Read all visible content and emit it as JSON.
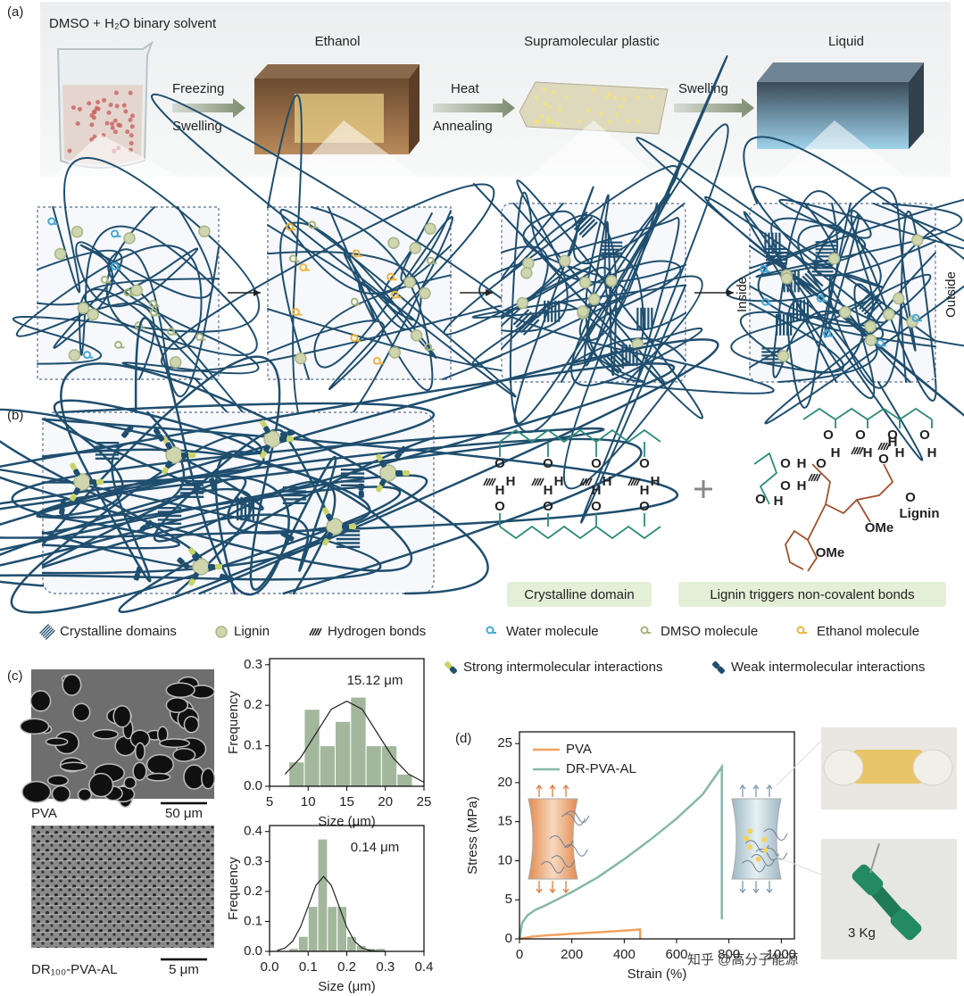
{
  "panel_labels": [
    "(a)",
    "(b)",
    "(c)",
    "(d)"
  ],
  "panel_a": {
    "solvent": "DMSO + H₂O binary solvent",
    "stages": [
      "Ethanol",
      "Supramolecular plastic",
      "Liquid"
    ],
    "steps": [
      [
        "Freezing",
        "Swelling"
      ],
      [
        "Heat",
        "Annealing"
      ],
      [
        "Swelling"
      ]
    ],
    "inside": "Inside",
    "outside": "Outside"
  },
  "panel_b": {
    "captions": [
      "Crystalline domain",
      "Lignin triggers non-covalent bonds"
    ],
    "atoms": {
      "oxygen": "O",
      "hydrogen": "H",
      "methoxy": "OMe",
      "lignin": "Lignin"
    }
  },
  "legend": [
    "Crystalline domains",
    "Lignin",
    "Hydrogen bonds",
    "Water molecule",
    "DMSO molecule",
    "Ethanol molecule",
    "Strong intermolecular interactions",
    "Weak intermolecular interactions"
  ],
  "panel_c": {
    "images": [
      {
        "label": "PVA",
        "scale": "50 μm"
      },
      {
        "label": "DR₁₀₀-PVA-AL",
        "scale": "5 μm"
      }
    ]
  },
  "panel_d": {
    "photo_label": "3 Kg"
  },
  "watermark": "知乎 @高分子能源",
  "chart_data": [
    {
      "type": "histogram",
      "annotation": "15.12 μm",
      "xlabel": "Size (μm)",
      "ylabel": "Frequency",
      "color": "#a3b79d",
      "bins": [
        7.5,
        9.5,
        11.5,
        13.5,
        15.5,
        17.5,
        19.5,
        21.5,
        23.5
      ],
      "values": [
        0.06,
        0.19,
        0.1,
        0.16,
        0.22,
        0.1,
        0.1,
        0.03
      ],
      "fit": {
        "x": [
          7,
          9,
          11,
          13,
          15,
          17,
          19,
          21,
          23,
          25
        ],
        "y": [
          0.03,
          0.07,
          0.13,
          0.19,
          0.21,
          0.19,
          0.13,
          0.07,
          0.03,
          0.01
        ]
      },
      "xlim": [
        5,
        25
      ],
      "xticks": [
        5,
        10,
        15,
        20,
        25
      ],
      "ylim": [
        0,
        0.315
      ],
      "yticks": [
        {
          "value": 0,
          "label": "0.0"
        },
        0.1,
        0.2,
        0.3
      ]
    },
    {
      "type": "histogram",
      "annotation": "0.14 μm",
      "xlabel": "Size (μm)",
      "ylabel": "Frequency",
      "color": "#a3b79d",
      "bins": [
        0.05,
        0.075,
        0.1,
        0.125,
        0.15,
        0.175,
        0.2,
        0.225,
        0.25,
        0.275,
        0.3
      ],
      "values": [
        0.01,
        0.05,
        0.15,
        0.375,
        0.15,
        0.15,
        0.05,
        0.02,
        0.01,
        0.01
      ],
      "fit": {
        "x": [
          0.02,
          0.04,
          0.06,
          0.08,
          0.1,
          0.12,
          0.14,
          0.16,
          0.18,
          0.2,
          0.22,
          0.24,
          0.26,
          0.28,
          0.3
        ],
        "y": [
          0.003,
          0.011,
          0.034,
          0.081,
          0.15,
          0.22,
          0.25,
          0.22,
          0.15,
          0.081,
          0.034,
          0.011,
          0.003,
          0.001,
          0
        ]
      },
      "xlim": [
        0,
        0.4
      ],
      "xticks": [
        {
          "value": 0,
          "label": "0.0"
        },
        0.1,
        0.2,
        0.3,
        0.4
      ],
      "ylim": [
        0,
        0.42
      ],
      "yticks": [
        {
          "value": 0,
          "label": "0.0"
        },
        0.1,
        0.2,
        0.3,
        0.4
      ]
    },
    {
      "type": "line",
      "xlabel": "Strain (%)",
      "ylabel": "Stress (MPa)",
      "legend": "upper left",
      "xlim": [
        0,
        1050
      ],
      "xticks": [
        0,
        200,
        400,
        600,
        800,
        1000
      ],
      "ylim": [
        0,
        26.5
      ],
      "yticks": [
        0,
        5,
        10,
        15,
        20,
        25
      ],
      "series": [
        {
          "name": "PVA",
          "color": "#f2a15f",
          "x": [
            0,
            50,
            100,
            200,
            300,
            400,
            461,
            461
          ],
          "values": [
            0,
            0.3,
            0.45,
            0.65,
            0.85,
            1.05,
            1.2,
            0
          ]
        },
        {
          "name": "DR-PVA-AL",
          "color": "#86b8a9",
          "x": [
            0,
            10,
            30,
            60,
            100,
            200,
            300,
            400,
            500,
            600,
            700,
            773,
            773
          ],
          "values": [
            0,
            2,
            3,
            3.7,
            4.3,
            6,
            7.9,
            10.2,
            12.7,
            15.4,
            18.5,
            22,
            2.5
          ]
        }
      ]
    }
  ]
}
